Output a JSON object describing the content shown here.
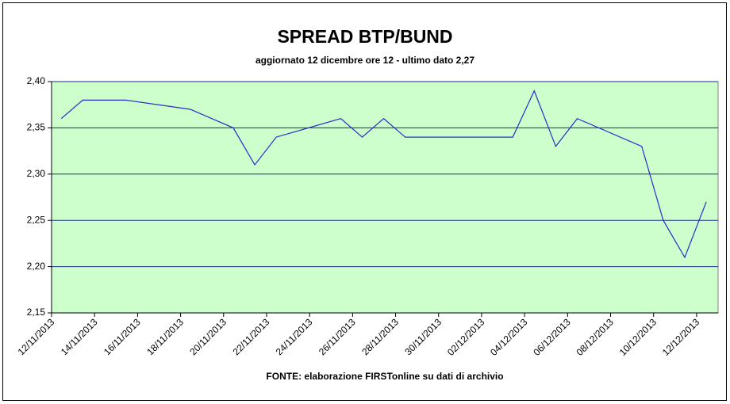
{
  "chart_data": {
    "type": "line",
    "title": "SPREAD BTP/BUND",
    "subtitle": "aggiornato 12 dicembre ore 12 - ultimo dato 2,27",
    "source": "FONTE: elaborazione FIRSTonline su dati di archivio",
    "x": [
      "12/11/2013",
      "13/11/2013",
      "14/11/2013",
      "15/11/2013",
      "18/11/2013",
      "19/11/2013",
      "20/11/2013",
      "21/11/2013",
      "22/11/2013",
      "25/11/2013",
      "26/11/2013",
      "27/11/2013",
      "28/11/2013",
      "29/11/2013",
      "02/12/2013",
      "03/12/2013",
      "04/12/2013",
      "05/12/2013",
      "06/12/2013",
      "09/12/2013",
      "10/12/2013",
      "11/12/2013",
      "12/12/2013"
    ],
    "series": [
      {
        "color": "#2b2bc8",
        "values": [
          2.36,
          2.38,
          2.38,
          2.38,
          2.37,
          2.36,
          2.35,
          2.31,
          2.34,
          2.36,
          2.34,
          2.36,
          2.34,
          2.34,
          2.34,
          2.34,
          2.39,
          2.33,
          2.36,
          2.33,
          2.25,
          2.21,
          2.27
        ]
      }
    ],
    "xlim": [
      "12/11/2013",
      "13/12/2013"
    ],
    "xticks": [
      "12/11/2013",
      "14/11/2013",
      "16/11/2013",
      "18/11/2013",
      "20/11/2013",
      "22/11/2013",
      "24/11/2013",
      "26/11/2013",
      "28/11/2013",
      "30/11/2013",
      "02/12/2013",
      "04/12/2013",
      "06/12/2013",
      "08/12/2013",
      "10/12/2013",
      "12/12/2013"
    ],
    "ylim": [
      2.15,
      2.4
    ],
    "yticks": [
      {
        "value": 2.15,
        "label": "2,15"
      },
      {
        "value": 2.2,
        "label": "2,20"
      },
      {
        "value": 2.25,
        "label": "2,25"
      },
      {
        "value": 2.3,
        "label": "2,30"
      },
      {
        "value": 2.35,
        "label": "2,35"
      },
      {
        "value": 2.4,
        "label": "2,40"
      }
    ],
    "grid": true,
    "plot_background": "#ccffcc"
  }
}
